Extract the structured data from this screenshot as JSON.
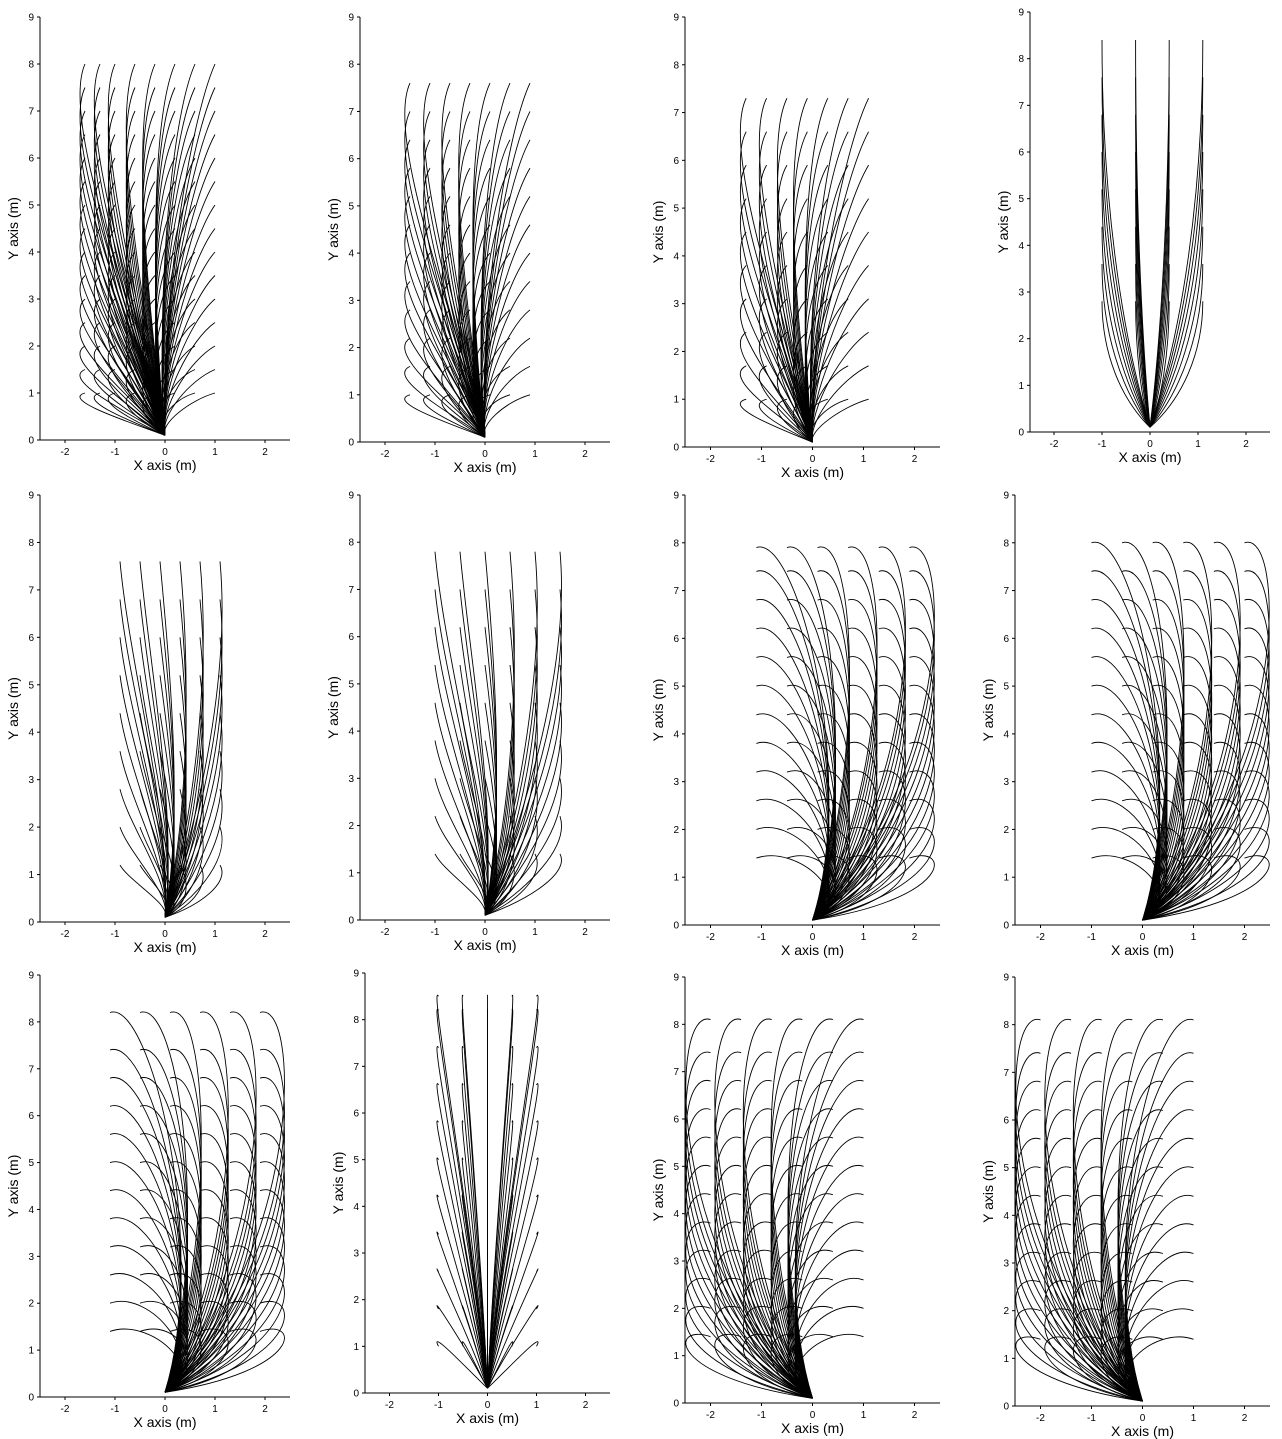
{
  "colors": {
    "background": "#ffffff",
    "axis": "#000000",
    "trajectory": "#000000"
  },
  "chart_data": [
    {
      "panel": 1,
      "type": "line",
      "family": "left-right-curved",
      "xlabel": "X axis (m)",
      "ylabel": "Y axis (m)",
      "xlim": [
        -2.5,
        2.5
      ],
      "ylim": [
        0,
        9
      ],
      "xticks": [
        -2,
        -1,
        0,
        1,
        2
      ],
      "yticks": [
        0,
        1,
        2,
        3,
        4,
        5,
        6,
        7,
        8,
        9
      ],
      "endpoints_x": [
        -1.6,
        -1.3,
        -1.0,
        -0.6,
        -0.2,
        0.2,
        0.6,
        1.0
      ],
      "endpoints_y": [
        1.0,
        1.5,
        2.0,
        2.5,
        3.0,
        3.5,
        4.0,
        4.5,
        5.0,
        5.5,
        6.0,
        6.5,
        7.0,
        7.5,
        8.0
      ]
    },
    {
      "panel": 2,
      "type": "line",
      "family": "left-right-curved",
      "xlabel": "X axis (m)",
      "ylabel": "Y axis (m)",
      "xlim": [
        -2.5,
        2.5
      ],
      "ylim": [
        0,
        9
      ],
      "xticks": [
        -2,
        -1,
        0,
        1,
        2
      ],
      "yticks": [
        0,
        1,
        2,
        3,
        4,
        5,
        6,
        7,
        8,
        9
      ],
      "endpoints_x": [
        -1.5,
        -1.1,
        -0.7,
        -0.3,
        0.1,
        0.5,
        0.9
      ],
      "endpoints_y": [
        1.0,
        1.6,
        2.2,
        2.8,
        3.4,
        4.0,
        4.6,
        5.2,
        5.8,
        6.4,
        7.0,
        7.6
      ]
    },
    {
      "panel": 3,
      "type": "line",
      "family": "left-right-curved",
      "xlabel": "X axis (m)",
      "ylabel": "Y axis (m)",
      "xlim": [
        -2.5,
        2.5
      ],
      "ylim": [
        0,
        9
      ],
      "xticks": [
        -2,
        -1,
        0,
        1,
        2
      ],
      "yticks": [
        0,
        1,
        2,
        3,
        4,
        5,
        6,
        7,
        8,
        9
      ],
      "endpoints_x": [
        -1.3,
        -0.9,
        -0.5,
        -0.1,
        0.3,
        0.7,
        1.1
      ],
      "endpoints_y": [
        1.0,
        1.7,
        2.4,
        3.1,
        3.8,
        4.5,
        5.2,
        5.9,
        6.6,
        7.3
      ]
    },
    {
      "panel": 4,
      "type": "line",
      "family": "straight-fan",
      "xlabel": "X axis (m)",
      "ylabel": "Y axis (m)",
      "xlim": [
        -2.5,
        2.5
      ],
      "ylim": [
        0,
        9
      ],
      "xticks": [
        -2,
        -1,
        0,
        1,
        2
      ],
      "yticks": [
        0,
        1,
        2,
        3,
        4,
        5,
        6,
        7,
        8,
        9
      ],
      "endpoints_x": [
        -1.0,
        -0.3,
        0.4,
        1.1
      ],
      "endpoints_y": [
        8.4,
        7.6,
        6.8,
        6.0,
        5.2,
        4.4,
        3.6,
        2.8
      ]
    },
    {
      "panel": 5,
      "type": "line",
      "family": "right-leaning",
      "xlabel": "X axis (m)",
      "ylabel": "Y axis (m)",
      "xlim": [
        -2.5,
        2.5
      ],
      "ylim": [
        0,
        9
      ],
      "xticks": [
        -2,
        -1,
        0,
        1,
        2
      ],
      "yticks": [
        0,
        1,
        2,
        3,
        4,
        5,
        6,
        7,
        8,
        9
      ],
      "endpoints_x": [
        -0.9,
        -0.5,
        -0.1,
        0.3,
        0.7,
        1.1
      ],
      "endpoints_y": [
        1.2,
        2.0,
        2.8,
        3.6,
        4.4,
        5.2,
        6.0,
        6.8,
        7.6
      ]
    },
    {
      "panel": 6,
      "type": "line",
      "family": "right-leaning",
      "xlabel": "X axis (m)",
      "ylabel": "Y axis (m)",
      "xlim": [
        -2.5,
        2.5
      ],
      "ylim": [
        0,
        9
      ],
      "xticks": [
        -2,
        -1,
        0,
        1,
        2
      ],
      "yticks": [
        0,
        1,
        2,
        3,
        4,
        5,
        6,
        7,
        8,
        9
      ],
      "endpoints_x": [
        -1.0,
        -0.5,
        0.0,
        0.5,
        1.0,
        1.5
      ],
      "endpoints_y": [
        1.4,
        2.2,
        3.0,
        3.8,
        4.6,
        5.4,
        6.2,
        7.0,
        7.8
      ]
    },
    {
      "panel": 7,
      "type": "line",
      "family": "right-arcs",
      "xlabel": "X axis (m)",
      "ylabel": "Y axis (m)",
      "xlim": [
        -2.5,
        2.5
      ],
      "ylim": [
        0,
        9
      ],
      "xticks": [
        -2,
        -1,
        0,
        1,
        2
      ],
      "yticks": [
        0,
        1,
        2,
        3,
        4,
        5,
        6,
        7,
        8,
        9
      ],
      "endpoints_x": [
        -1.1,
        -0.5,
        0.1,
        0.7,
        1.3,
        1.9
      ],
      "endpoints_y": [
        1.4,
        2.0,
        2.6,
        3.2,
        3.8,
        4.4,
        5.0,
        5.6,
        6.2,
        6.8,
        7.4,
        7.9
      ]
    },
    {
      "panel": 8,
      "type": "line",
      "family": "right-arcs",
      "xlabel": "X axis (m)",
      "ylabel": "Y axis (m)",
      "xlim": [
        -2.5,
        2.5
      ],
      "ylim": [
        0,
        9
      ],
      "xticks": [
        -2,
        -1,
        0,
        1,
        2
      ],
      "yticks": [
        0,
        1,
        2,
        3,
        4,
        5,
        6,
        7,
        8,
        9
      ],
      "endpoints_x": [
        -1.0,
        -0.4,
        0.2,
        0.8,
        1.4,
        2.0
      ],
      "endpoints_y": [
        1.4,
        2.0,
        2.6,
        3.2,
        3.8,
        4.4,
        5.0,
        5.6,
        6.2,
        6.8,
        7.4,
        8.0
      ]
    },
    {
      "panel": 9,
      "type": "line",
      "family": "right-arcs",
      "xlabel": "X axis (m)",
      "ylabel": "Y axis (m)",
      "xlim": [
        -2.5,
        2.5
      ],
      "ylim": [
        0,
        9
      ],
      "xticks": [
        -2,
        -1,
        0,
        1,
        2
      ],
      "yticks": [
        0,
        1,
        2,
        3,
        4,
        5,
        6,
        7,
        8,
        9
      ],
      "endpoints_x": [
        -1.1,
        -0.5,
        0.1,
        0.7,
        1.3,
        1.9
      ],
      "endpoints_y": [
        1.4,
        2.0,
        2.6,
        3.2,
        3.8,
        4.4,
        5.0,
        5.6,
        6.2,
        6.8,
        7.4,
        8.2
      ]
    },
    {
      "panel": 10,
      "type": "line",
      "family": "symmetric-arcs",
      "xlabel": "X axis (m)",
      "ylabel": "Y axis (m)",
      "xlim": [
        -2.5,
        2.5
      ],
      "ylim": [
        0,
        9
      ],
      "xticks": [
        -2,
        -1,
        0,
        1,
        2
      ],
      "yticks": [
        0,
        1,
        2,
        3,
        4,
        5,
        6,
        7,
        8,
        9
      ],
      "endpoints_x": [
        -1.0,
        -0.5,
        0.0,
        0.5,
        1.0
      ],
      "endpoints_y": [
        1.0,
        1.8,
        2.6,
        3.4,
        4.2,
        5.0,
        5.8,
        6.6,
        7.4,
        8.2,
        8.5
      ]
    },
    {
      "panel": 11,
      "type": "line",
      "family": "left-arcs",
      "xlabel": "X axis (m)",
      "ylabel": "Y axis (m)",
      "xlim": [
        -2.5,
        2.5
      ],
      "ylim": [
        0,
        9
      ],
      "xticks": [
        -2,
        -1,
        0,
        1,
        2
      ],
      "yticks": [
        0,
        1,
        2,
        3,
        4,
        5,
        6,
        7,
        8,
        9
      ],
      "endpoints_x": [
        -2.0,
        -1.4,
        -0.8,
        -0.2,
        0.4,
        1.0
      ],
      "endpoints_y": [
        1.4,
        2.0,
        2.6,
        3.2,
        3.8,
        4.4,
        5.0,
        5.6,
        6.2,
        6.8,
        7.4,
        8.1
      ]
    },
    {
      "panel": 12,
      "type": "line",
      "family": "left-arcs",
      "xlabel": "X axis (m)",
      "ylabel": "Y axis (m)",
      "xlim": [
        -2.5,
        2.5
      ],
      "ylim": [
        0,
        9
      ],
      "xticks": [
        -2,
        -1,
        0,
        1,
        2
      ],
      "yticks": [
        0,
        1,
        2,
        3,
        4,
        5,
        6,
        7,
        8,
        9
      ],
      "endpoints_x": [
        -2.0,
        -1.4,
        -0.8,
        -0.2,
        0.4,
        1.0
      ],
      "endpoints_y": [
        1.4,
        2.0,
        2.6,
        3.2,
        3.8,
        4.4,
        5.0,
        5.6,
        6.2,
        6.8,
        7.4,
        8.1
      ]
    }
  ]
}
